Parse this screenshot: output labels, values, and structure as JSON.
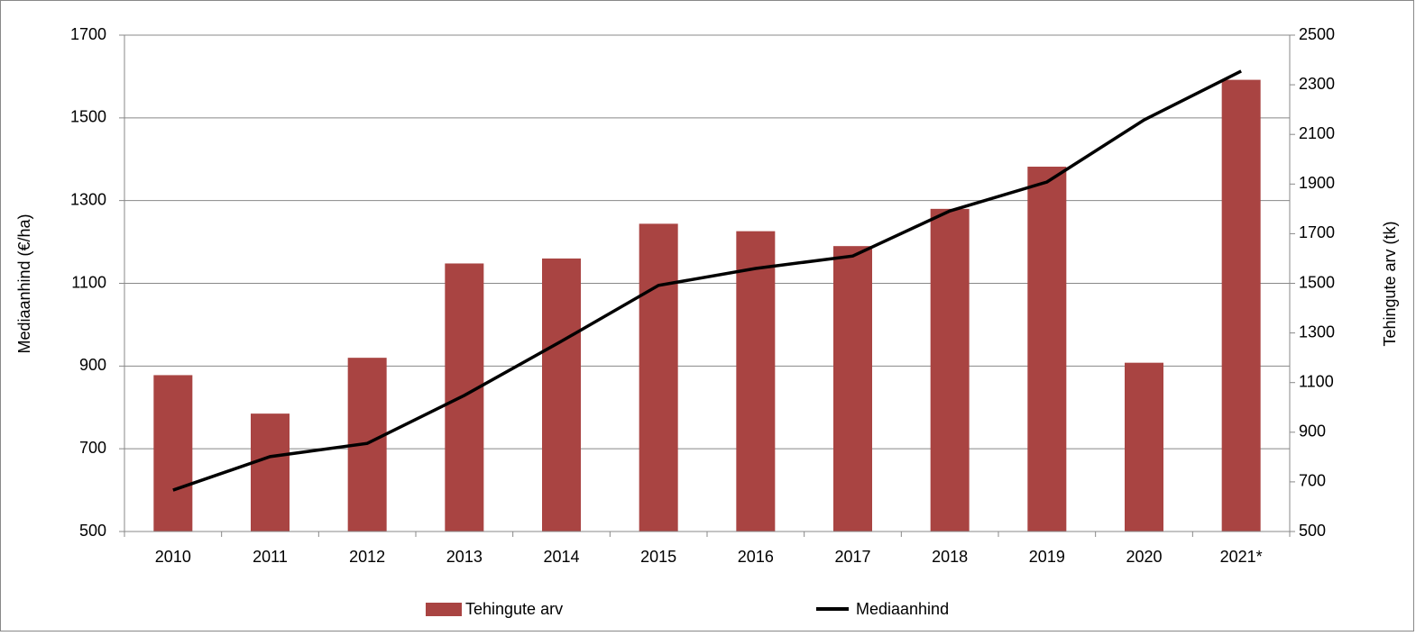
{
  "chart_data": {
    "type": "bar_line",
    "categories": [
      "2010",
      "2011",
      "2012",
      "2013",
      "2014",
      "2015",
      "2016",
      "2017",
      "2018",
      "2019",
      "2020",
      "2021*"
    ],
    "series": [
      {
        "name": "Tehingute arv",
        "type": "bar",
        "axis": "y2",
        "color": "#a94442",
        "values": [
          1130,
          975,
          1200,
          1580,
          1600,
          1740,
          1710,
          1650,
          1800,
          1970,
          1180,
          2320
        ]
      },
      {
        "name": "Mediaanhind",
        "type": "line",
        "axis": "y",
        "color": "#000000",
        "values": [
          600,
          681,
          713,
          829,
          960,
          1095,
          1136,
          1166,
          1275,
          1345,
          1495,
          1613
        ]
      }
    ],
    "ylabel": "Mediaanhind (€/ha)",
    "y2label": "Tehingute arv (tk)",
    "ylim": [
      500,
      1700
    ],
    "yticks": [
      500,
      700,
      900,
      1100,
      1300,
      1500,
      1700
    ],
    "y2lim": [
      500,
      2500
    ],
    "y2ticks": [
      500,
      700,
      900,
      1100,
      1300,
      1500,
      1700,
      1900,
      2100,
      2300,
      2500
    ],
    "grid": true,
    "legend": "bottom"
  }
}
